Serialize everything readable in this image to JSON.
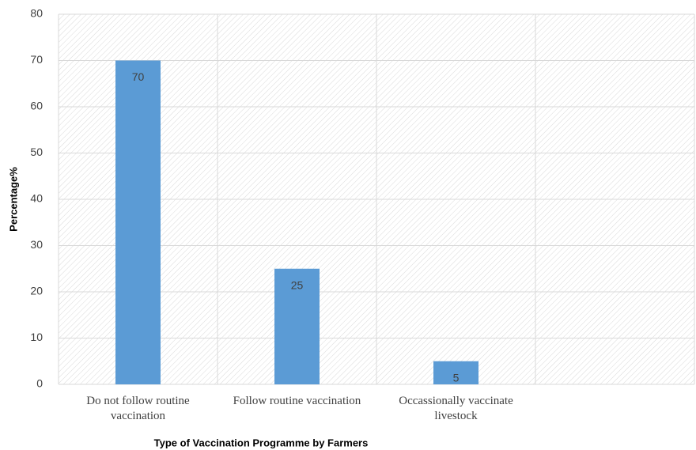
{
  "chart_data": {
    "type": "bar",
    "x_label": "Type of Vaccination Programme by Farmers",
    "y_label": "Percentage%",
    "categories": [
      "Do not follow routine vaccination",
      "Follow routine vaccination",
      "Occassionally vaccinate livestock",
      null
    ],
    "values": [
      70,
      25,
      5,
      null
    ],
    "color": "#5b9bd5",
    "ylim": [
      0,
      80
    ],
    "yticks": [
      0,
      10,
      20,
      30,
      40,
      50,
      60,
      70,
      80
    ],
    "grid": true
  }
}
